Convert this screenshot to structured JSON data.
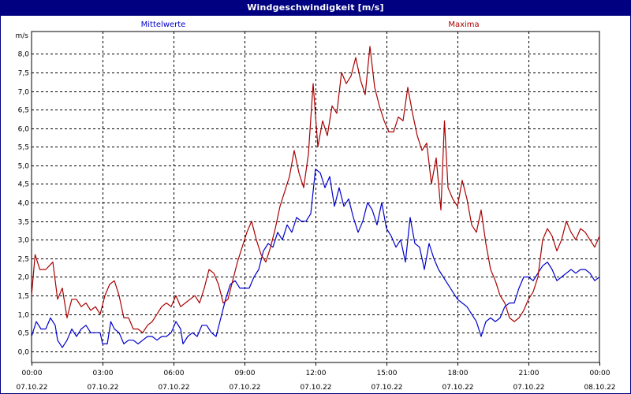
{
  "window": {
    "title": "Windgeschwindigkeit [m/s]"
  },
  "chart_data": {
    "type": "line",
    "title": "Windgeschwindigkeit [m/s]",
    "ylabel": "m/s",
    "ylim": [
      -0.3,
      8.6
    ],
    "xlim": [
      0,
      24
    ],
    "grid": true,
    "yticks": [
      "0,0",
      "0,5",
      "1,0",
      "1,5",
      "2,0",
      "2,5",
      "3,0",
      "3,5",
      "4,0",
      "4,5",
      "5,0",
      "5,5",
      "6,0",
      "6,5",
      "7,0",
      "7,5",
      "8,0"
    ],
    "xticks": [
      {
        "time": "00:00",
        "date": "07.10.22"
      },
      {
        "time": "03:00",
        "date": "07.10.22"
      },
      {
        "time": "06:00",
        "date": "07.10.22"
      },
      {
        "time": "09:00",
        "date": "07.10.22"
      },
      {
        "time": "12:00",
        "date": "07.10.22"
      },
      {
        "time": "15:00",
        "date": "07.10.22"
      },
      {
        "time": "18:00",
        "date": "07.10.22"
      },
      {
        "time": "21:00",
        "date": "07.10.22"
      },
      {
        "time": "00:00",
        "date": "08.10.22"
      }
    ],
    "series": [
      {
        "name": "Mittelwerte",
        "color": "#0000cc",
        "points": [
          [
            0,
            0.4
          ],
          [
            0.2,
            0.8
          ],
          [
            0.4,
            0.6
          ],
          [
            0.6,
            0.6
          ],
          [
            0.8,
            0.9
          ],
          [
            1.0,
            0.7
          ],
          [
            1.1,
            0.3
          ],
          [
            1.3,
            0.1
          ],
          [
            1.5,
            0.3
          ],
          [
            1.7,
            0.6
          ],
          [
            1.9,
            0.4
          ],
          [
            2.1,
            0.6
          ],
          [
            2.3,
            0.7
          ],
          [
            2.5,
            0.5
          ],
          [
            2.7,
            0.5
          ],
          [
            2.9,
            0.5
          ],
          [
            3.0,
            0.2
          ],
          [
            3.2,
            0.2
          ],
          [
            3.35,
            0.8
          ],
          [
            3.5,
            0.6
          ],
          [
            3.7,
            0.5
          ],
          [
            3.9,
            0.2
          ],
          [
            4.1,
            0.3
          ],
          [
            4.3,
            0.3
          ],
          [
            4.5,
            0.2
          ],
          [
            4.7,
            0.3
          ],
          [
            4.9,
            0.4
          ],
          [
            5.1,
            0.4
          ],
          [
            5.3,
            0.3
          ],
          [
            5.5,
            0.4
          ],
          [
            5.7,
            0.4
          ],
          [
            5.9,
            0.5
          ],
          [
            6.1,
            0.8
          ],
          [
            6.3,
            0.6
          ],
          [
            6.4,
            0.2
          ],
          [
            6.6,
            0.4
          ],
          [
            6.8,
            0.5
          ],
          [
            7.0,
            0.4
          ],
          [
            7.2,
            0.7
          ],
          [
            7.4,
            0.7
          ],
          [
            7.6,
            0.5
          ],
          [
            7.8,
            0.4
          ],
          [
            8.0,
            0.9
          ],
          [
            8.2,
            1.4
          ],
          [
            8.4,
            1.8
          ],
          [
            8.6,
            1.9
          ],
          [
            8.8,
            1.7
          ],
          [
            9.0,
            1.7
          ],
          [
            9.2,
            1.7
          ],
          [
            9.4,
            2.0
          ],
          [
            9.6,
            2.2
          ],
          [
            9.8,
            2.7
          ],
          [
            10.0,
            2.9
          ],
          [
            10.2,
            2.8
          ],
          [
            10.4,
            3.2
          ],
          [
            10.6,
            3.0
          ],
          [
            10.8,
            3.4
          ],
          [
            11.0,
            3.2
          ],
          [
            11.2,
            3.6
          ],
          [
            11.4,
            3.5
          ],
          [
            11.6,
            3.5
          ],
          [
            11.8,
            3.7
          ],
          [
            12.0,
            4.9
          ],
          [
            12.2,
            4.8
          ],
          [
            12.4,
            4.4
          ],
          [
            12.6,
            4.7
          ],
          [
            12.8,
            3.9
          ],
          [
            13.0,
            4.4
          ],
          [
            13.2,
            3.9
          ],
          [
            13.4,
            4.1
          ],
          [
            13.6,
            3.6
          ],
          [
            13.8,
            3.2
          ],
          [
            14.0,
            3.5
          ],
          [
            14.2,
            4.0
          ],
          [
            14.4,
            3.8
          ],
          [
            14.6,
            3.4
          ],
          [
            14.8,
            4.0
          ],
          [
            15.0,
            3.3
          ],
          [
            15.2,
            3.1
          ],
          [
            15.4,
            2.8
          ],
          [
            15.6,
            3.0
          ],
          [
            15.8,
            2.4
          ],
          [
            16.0,
            3.6
          ],
          [
            16.2,
            2.9
          ],
          [
            16.4,
            2.8
          ],
          [
            16.6,
            2.2
          ],
          [
            16.8,
            2.9
          ],
          [
            17.0,
            2.5
          ],
          [
            17.2,
            2.2
          ],
          [
            17.4,
            2.0
          ],
          [
            17.6,
            1.8
          ],
          [
            17.8,
            1.6
          ],
          [
            18.0,
            1.4
          ],
          [
            18.2,
            1.3
          ],
          [
            18.4,
            1.2
          ],
          [
            18.6,
            1.0
          ],
          [
            18.8,
            0.8
          ],
          [
            19.0,
            0.4
          ],
          [
            19.2,
            0.8
          ],
          [
            19.4,
            0.9
          ],
          [
            19.6,
            0.8
          ],
          [
            19.8,
            0.9
          ],
          [
            20.0,
            1.2
          ],
          [
            20.2,
            1.3
          ],
          [
            20.4,
            1.3
          ],
          [
            20.6,
            1.7
          ],
          [
            20.8,
            2.0
          ],
          [
            21.0,
            2.0
          ],
          [
            21.2,
            1.9
          ],
          [
            21.4,
            2.1
          ],
          [
            21.6,
            2.3
          ],
          [
            21.8,
            2.4
          ],
          [
            22.0,
            2.2
          ],
          [
            22.2,
            1.9
          ],
          [
            22.4,
            2.0
          ],
          [
            22.6,
            2.1
          ],
          [
            22.8,
            2.2
          ],
          [
            23.0,
            2.1
          ],
          [
            23.2,
            2.2
          ],
          [
            23.4,
            2.2
          ],
          [
            23.6,
            2.1
          ],
          [
            23.8,
            1.9
          ],
          [
            24.0,
            2.0
          ]
        ]
      },
      {
        "name": "Maxima",
        "color": "#aa0000",
        "points": [
          [
            0,
            1.5
          ],
          [
            0.15,
            2.6
          ],
          [
            0.35,
            2.2
          ],
          [
            0.6,
            2.2
          ],
          [
            0.9,
            2.4
          ],
          [
            1.1,
            1.4
          ],
          [
            1.3,
            1.7
          ],
          [
            1.5,
            0.9
          ],
          [
            1.7,
            1.4
          ],
          [
            1.9,
            1.4
          ],
          [
            2.1,
            1.2
          ],
          [
            2.3,
            1.3
          ],
          [
            2.5,
            1.1
          ],
          [
            2.7,
            1.2
          ],
          [
            2.9,
            1.0
          ],
          [
            3.1,
            1.5
          ],
          [
            3.3,
            1.8
          ],
          [
            3.5,
            1.9
          ],
          [
            3.7,
            1.5
          ],
          [
            3.9,
            0.9
          ],
          [
            4.1,
            0.9
          ],
          [
            4.3,
            0.6
          ],
          [
            4.5,
            0.6
          ],
          [
            4.7,
            0.5
          ],
          [
            4.9,
            0.7
          ],
          [
            5.1,
            0.8
          ],
          [
            5.3,
            1.0
          ],
          [
            5.5,
            1.2
          ],
          [
            5.7,
            1.3
          ],
          [
            5.9,
            1.2
          ],
          [
            6.1,
            1.5
          ],
          [
            6.3,
            1.2
          ],
          [
            6.5,
            1.3
          ],
          [
            6.7,
            1.4
          ],
          [
            6.9,
            1.5
          ],
          [
            7.1,
            1.3
          ],
          [
            7.3,
            1.7
          ],
          [
            7.5,
            2.2
          ],
          [
            7.7,
            2.1
          ],
          [
            7.9,
            1.8
          ],
          [
            8.1,
            1.3
          ],
          [
            8.3,
            1.4
          ],
          [
            8.5,
            1.9
          ],
          [
            8.7,
            2.4
          ],
          [
            8.9,
            2.8
          ],
          [
            9.1,
            3.2
          ],
          [
            9.3,
            3.5
          ],
          [
            9.5,
            3.0
          ],
          [
            9.7,
            2.6
          ],
          [
            9.9,
            2.4
          ],
          [
            10.1,
            2.8
          ],
          [
            10.3,
            3.3
          ],
          [
            10.5,
            3.9
          ],
          [
            10.7,
            4.3
          ],
          [
            10.9,
            4.7
          ],
          [
            11.1,
            5.4
          ],
          [
            11.3,
            4.8
          ],
          [
            11.5,
            4.4
          ],
          [
            11.7,
            5.3
          ],
          [
            11.9,
            7.2
          ],
          [
            12.1,
            5.5
          ],
          [
            12.3,
            6.2
          ],
          [
            12.5,
            5.8
          ],
          [
            12.7,
            6.6
          ],
          [
            12.9,
            6.4
          ],
          [
            13.1,
            7.5
          ],
          [
            13.3,
            7.2
          ],
          [
            13.5,
            7.4
          ],
          [
            13.7,
            7.9
          ],
          [
            13.9,
            7.3
          ],
          [
            14.1,
            6.9
          ],
          [
            14.3,
            8.2
          ],
          [
            14.5,
            7.1
          ],
          [
            14.7,
            6.6
          ],
          [
            14.9,
            6.2
          ],
          [
            15.1,
            5.9
          ],
          [
            15.3,
            5.9
          ],
          [
            15.5,
            6.3
          ],
          [
            15.7,
            6.2
          ],
          [
            15.9,
            7.1
          ],
          [
            16.1,
            6.4
          ],
          [
            16.3,
            5.8
          ],
          [
            16.5,
            5.4
          ],
          [
            16.7,
            5.6
          ],
          [
            16.9,
            4.5
          ],
          [
            17.1,
            5.2
          ],
          [
            17.3,
            3.8
          ],
          [
            17.45,
            6.2
          ],
          [
            17.6,
            4.4
          ],
          [
            17.8,
            4.1
          ],
          [
            18.0,
            3.9
          ],
          [
            18.2,
            4.6
          ],
          [
            18.4,
            4.1
          ],
          [
            18.6,
            3.4
          ],
          [
            18.8,
            3.2
          ],
          [
            19.0,
            3.8
          ],
          [
            19.2,
            2.9
          ],
          [
            19.4,
            2.2
          ],
          [
            19.6,
            1.9
          ],
          [
            19.8,
            1.5
          ],
          [
            20.0,
            1.3
          ],
          [
            20.2,
            0.9
          ],
          [
            20.4,
            0.8
          ],
          [
            20.6,
            0.9
          ],
          [
            20.8,
            1.1
          ],
          [
            21.0,
            1.4
          ],
          [
            21.2,
            1.6
          ],
          [
            21.4,
            2.0
          ],
          [
            21.6,
            3.0
          ],
          [
            21.8,
            3.3
          ],
          [
            22.0,
            3.1
          ],
          [
            22.2,
            2.7
          ],
          [
            22.4,
            3.0
          ],
          [
            22.6,
            3.5
          ],
          [
            22.8,
            3.2
          ],
          [
            23.0,
            3.0
          ],
          [
            23.2,
            3.3
          ],
          [
            23.4,
            3.2
          ],
          [
            23.6,
            3.0
          ],
          [
            23.8,
            2.8
          ],
          [
            24.0,
            3.1
          ]
        ]
      }
    ]
  }
}
